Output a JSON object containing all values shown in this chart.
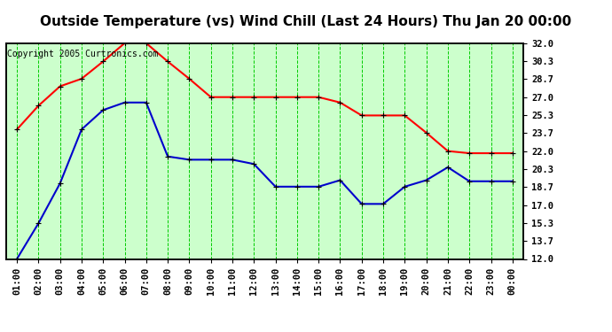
{
  "title": "Outside Temperature (vs) Wind Chill (Last 24 Hours) Thu Jan 20 00:00",
  "copyright": "Copyright 2005 Curtronics.com",
  "x_labels": [
    "01:00",
    "02:00",
    "03:00",
    "04:00",
    "05:00",
    "06:00",
    "07:00",
    "08:00",
    "09:00",
    "10:00",
    "11:00",
    "12:00",
    "13:00",
    "14:00",
    "15:00",
    "16:00",
    "17:00",
    "18:00",
    "19:00",
    "20:00",
    "21:00",
    "22:00",
    "23:00",
    "00:00"
  ],
  "red_data": [
    24.0,
    26.2,
    28.0,
    28.7,
    30.3,
    32.0,
    32.0,
    30.3,
    28.7,
    27.0,
    27.0,
    27.0,
    27.0,
    27.0,
    27.0,
    26.5,
    25.3,
    25.3,
    25.3,
    23.7,
    22.0,
    21.8,
    21.8,
    21.8
  ],
  "blue_data": [
    12.0,
    15.3,
    19.0,
    24.0,
    25.8,
    26.5,
    26.5,
    21.5,
    21.2,
    21.2,
    21.2,
    20.8,
    18.7,
    18.7,
    18.7,
    19.3,
    17.1,
    17.1,
    18.7,
    19.3,
    20.5,
    19.2,
    19.2,
    19.2
  ],
  "red_color": "#ff0000",
  "blue_color": "#0000cc",
  "bg_color": "#ccffcc",
  "grid_color": "#00cc00",
  "border_color": "#000000",
  "title_bg": "#ccffcc",
  "y_ticks": [
    12.0,
    13.7,
    15.3,
    17.0,
    18.7,
    20.3,
    22.0,
    23.7,
    25.3,
    27.0,
    28.7,
    30.3,
    32.0
  ],
  "ylim": [
    12.0,
    32.0
  ],
  "marker": "+",
  "markersize": 5,
  "linewidth": 1.5,
  "title_fontsize": 11,
  "copyright_fontsize": 7,
  "tick_fontsize": 7.5
}
